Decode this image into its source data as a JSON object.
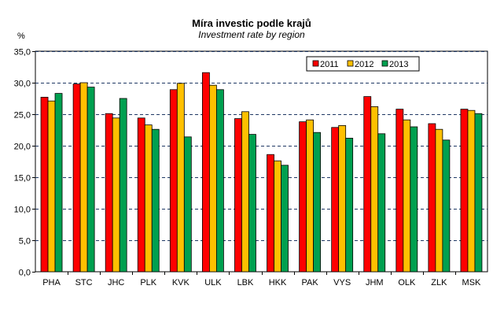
{
  "chart_data": {
    "type": "bar",
    "title": "Míra investic podle krajů",
    "subtitle": "Investment rate by region",
    "ylabel": "%",
    "xlabel": "",
    "ylim": [
      0,
      35
    ],
    "ytick_step": 5,
    "ytick_labels": [
      "0,0",
      "5,0",
      "10,0",
      "15,0",
      "20,0",
      "25,0",
      "30,0",
      "35,0"
    ],
    "grid": true,
    "legend_position": "top-right",
    "categories": [
      "PHA",
      "STC",
      "JHC",
      "PLK",
      "KVK",
      "ULK",
      "LBK",
      "HKK",
      "PAK",
      "VYS",
      "JHM",
      "OLK",
      "ZLK",
      "MSK"
    ],
    "series": [
      {
        "name": "2011",
        "color": "#ff0000",
        "values": [
          27.7,
          29.8,
          25.1,
          24.4,
          28.9,
          31.6,
          24.3,
          18.6,
          23.8,
          22.9,
          27.8,
          25.8,
          23.5,
          25.8
        ]
      },
      {
        "name": "2012",
        "color": "#ffc000",
        "values": [
          27.1,
          30.0,
          24.4,
          23.3,
          29.9,
          29.6,
          25.4,
          17.6,
          24.1,
          23.2,
          26.2,
          24.1,
          22.6,
          25.6
        ]
      },
      {
        "name": "2013",
        "color": "#00a050",
        "values": [
          28.3,
          29.3,
          27.5,
          22.6,
          21.4,
          28.9,
          21.8,
          16.9,
          22.1,
          21.2,
          21.9,
          23.0,
          20.9,
          25.1
        ]
      }
    ]
  }
}
